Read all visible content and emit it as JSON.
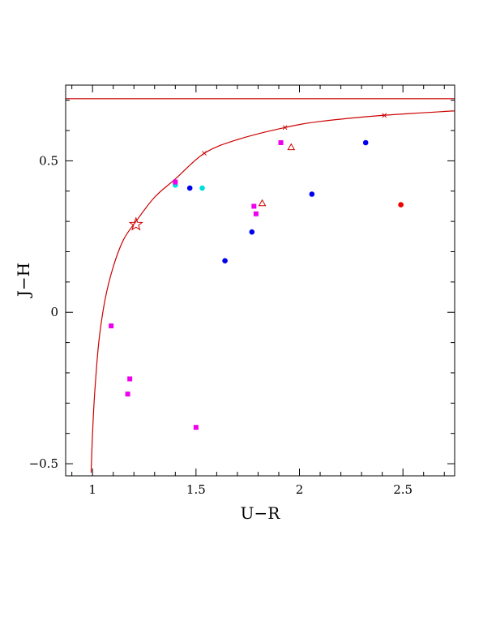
{
  "chart_data": {
    "type": "scatter",
    "title": "",
    "xlabel": "U−R",
    "ylabel": "J−H",
    "xlim": [
      0.87,
      2.75
    ],
    "ylim": [
      -0.54,
      0.75
    ],
    "x_ticks": [
      {
        "value": 1,
        "label": "1"
      },
      {
        "value": 1.5,
        "label": "1.5"
      },
      {
        "value": 2,
        "label": "2"
      },
      {
        "value": 2.5,
        "label": "2.5"
      }
    ],
    "y_ticks": [
      {
        "value": -0.5,
        "label": "−0.5"
      },
      {
        "value": 0,
        "label": "0"
      },
      {
        "value": 0.5,
        "label": "0.5"
      }
    ],
    "grid": false,
    "legend": "none",
    "colors": {
      "axis": "#000000",
      "curve": "#cc0000",
      "blue": "#0000ee",
      "magenta": "#ee00ee",
      "cyan": "#00dddd",
      "red": "#ee0000"
    },
    "horizontal_line": {
      "y": 0.705,
      "color": "#cc0000"
    },
    "curve": {
      "color": "#cc0000",
      "points": [
        {
          "x": 0.993,
          "y": -0.53
        },
        {
          "x": 1.0,
          "y": -0.4
        },
        {
          "x": 1.01,
          "y": -0.27
        },
        {
          "x": 1.03,
          "y": -0.1
        },
        {
          "x": 1.06,
          "y": 0.04
        },
        {
          "x": 1.1,
          "y": 0.15
        },
        {
          "x": 1.15,
          "y": 0.24
        },
        {
          "x": 1.21,
          "y": 0.3
        },
        {
          "x": 1.3,
          "y": 0.38
        },
        {
          "x": 1.4,
          "y": 0.44
        },
        {
          "x": 1.54,
          "y": 0.525
        },
        {
          "x": 1.7,
          "y": 0.57
        },
        {
          "x": 1.93,
          "y": 0.61
        },
        {
          "x": 2.1,
          "y": 0.63
        },
        {
          "x": 2.4,
          "y": 0.65
        },
        {
          "x": 2.75,
          "y": 0.665
        }
      ],
      "cross_markers": [
        {
          "x": 1.54,
          "y": 0.525
        },
        {
          "x": 1.93,
          "y": 0.61
        },
        {
          "x": 2.41,
          "y": 0.65
        }
      ]
    },
    "series": [
      {
        "marker": "circle",
        "color": "#0000ee",
        "points": [
          {
            "x": 1.47,
            "y": 0.41
          },
          {
            "x": 1.64,
            "y": 0.17
          },
          {
            "x": 1.77,
            "y": 0.265
          },
          {
            "x": 2.06,
            "y": 0.39
          },
          {
            "x": 2.32,
            "y": 0.56
          }
        ]
      },
      {
        "marker": "circle",
        "color": "#00dddd",
        "points": [
          {
            "x": 1.4,
            "y": 0.42
          },
          {
            "x": 1.53,
            "y": 0.41
          }
        ]
      },
      {
        "marker": "circle",
        "color": "#ee0000",
        "points": [
          {
            "x": 2.49,
            "y": 0.355
          }
        ]
      },
      {
        "marker": "square",
        "color": "#ee00ee",
        "points": [
          {
            "x": 1.09,
            "y": -0.045
          },
          {
            "x": 1.18,
            "y": -0.22
          },
          {
            "x": 1.17,
            "y": -0.27
          },
          {
            "x": 1.4,
            "y": 0.43
          },
          {
            "x": 1.5,
            "y": -0.38
          },
          {
            "x": 1.78,
            "y": 0.35
          },
          {
            "x": 1.79,
            "y": 0.325
          },
          {
            "x": 1.91,
            "y": 0.56
          }
        ]
      },
      {
        "marker": "triangle",
        "color": "#cc0000",
        "points": [
          {
            "x": 1.82,
            "y": 0.36
          },
          {
            "x": 1.96,
            "y": 0.545
          }
        ]
      },
      {
        "marker": "star",
        "color": "#cc0000",
        "points": [
          {
            "x": 1.21,
            "y": 0.29
          }
        ]
      }
    ]
  }
}
